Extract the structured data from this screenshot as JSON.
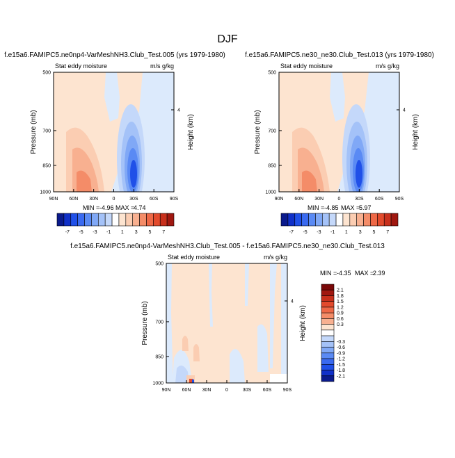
{
  "page": {
    "title": "DJF"
  },
  "palette": {
    "blues": [
      "#0a1a8c",
      "#1030c8",
      "#2050e8",
      "#3a6af0",
      "#5a8af4",
      "#80a8f6",
      "#a4c2f8",
      "#c4d8fa",
      "#dceafc"
    ],
    "reds": [
      "#fde4d0",
      "#fbcdb2",
      "#f8b090",
      "#f48c68",
      "#ee6846",
      "#e24a2c",
      "#c8301c",
      "#a01810",
      "#7a0808"
    ]
  },
  "chart_data": [
    {
      "type": "heatmap",
      "title": "f.e15a6.FAMIPC5.ne0np4-VarMeshNH3.Club_Test.005 (yrs 1979-1980)",
      "subtitle_left": "Stat eddy moisture",
      "subtitle_right": "m/s g/kg",
      "ylabel": "Pressure (mb)",
      "y2label": "Height (km)",
      "xticks": [
        "90N",
        "60N",
        "30N",
        "0",
        "30S",
        "60S",
        "90S"
      ],
      "yticks": [
        "500",
        "700",
        "850",
        "1000"
      ],
      "y2ticks": [
        "4"
      ],
      "min_label": "MIN =",
      "min_value": "-4.96",
      "max_label": "MAX =",
      "max_value": "4.74",
      "colorbar_labels": [
        "-7",
        "-5",
        "-3",
        "-1",
        "1",
        "3",
        "5",
        "7"
      ]
    },
    {
      "type": "heatmap",
      "title": "f.e15a6.FAMIPC5.ne30_ne30.Club_Test.013 (yrs 1979-1980)",
      "subtitle_left": "Stat eddy moisture",
      "subtitle_right": "m/s g/kg",
      "ylabel": "Pressure (mb)",
      "y2label": "Height (km)",
      "xticks": [
        "90N",
        "60N",
        "30N",
        "0",
        "30S",
        "60S",
        "90S"
      ],
      "yticks": [
        "500",
        "700",
        "850",
        "1000"
      ],
      "y2ticks": [
        "4"
      ],
      "min_label": "MIN =",
      "min_value": "-4.85",
      "max_label": "MAX =",
      "max_value": "5.97",
      "colorbar_labels": [
        "-7",
        "-5",
        "-3",
        "-1",
        "1",
        "3",
        "5",
        "7"
      ]
    },
    {
      "type": "heatmap",
      "title": "f.e15a6.FAMIPC5.ne0np4-VarMeshNH3.Club_Test.005 - f.e15a6.FAMIPC5.ne30_ne30.Club_Test.013",
      "subtitle_left": "Stat eddy moisture",
      "subtitle_right": "m/s g/kg",
      "ylabel": "Pressure (mb)",
      "y2label": "Height (km)",
      "xticks": [
        "90N",
        "60N",
        "30N",
        "0",
        "30S",
        "60S",
        "90S"
      ],
      "yticks": [
        "500",
        "700",
        "850",
        "1000"
      ],
      "y2ticks": [
        "4"
      ],
      "min_label": "MIN =",
      "min_value": "-4.35",
      "max_label": "MAX =",
      "max_value": "2.39",
      "colorbar_labels": [
        "2.1",
        "1.8",
        "1.5",
        "1.2",
        "0.9",
        "0.6",
        "0.3",
        "-0.3",
        "-0.6",
        "-0.9",
        "-1.2",
        "-1.5",
        "-1.8",
        "-2.1"
      ]
    }
  ]
}
